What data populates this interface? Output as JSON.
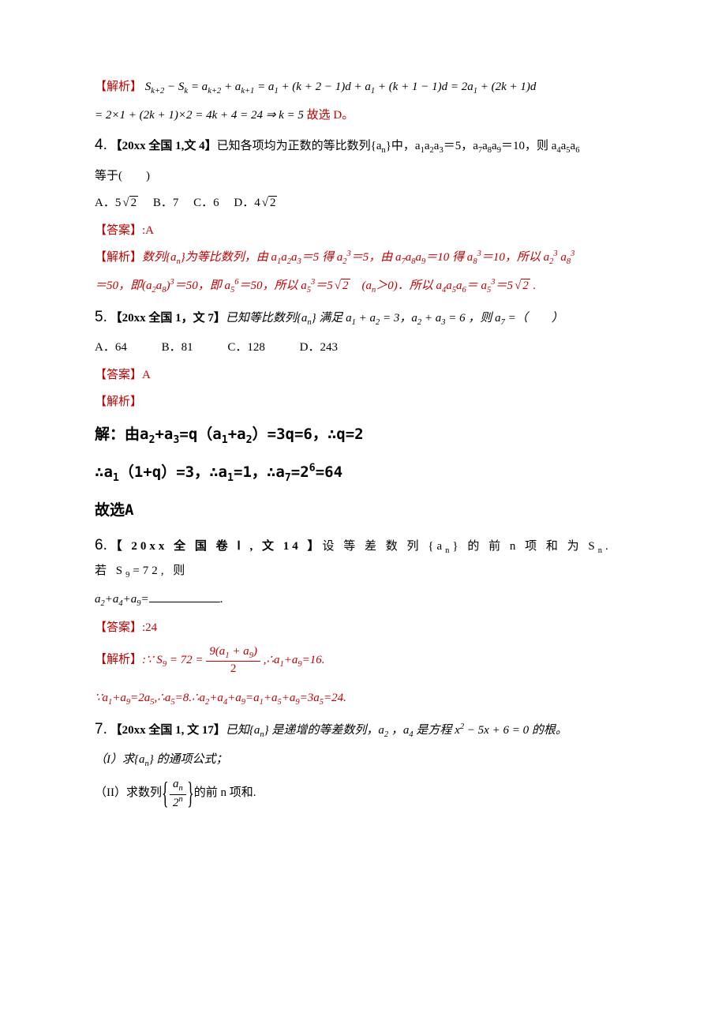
{
  "p3": {
    "analysis_label": "【解析】",
    "line1": "S<sub>k+2</sub> − S<sub>k</sub> = a<sub>k+2</sub> + a<sub>k+1</sub> = a<sub>1</sub> + (k + 2 − 1)d + a<sub>1</sub> + (k + 1 − 1)d = 2a<sub>1</sub> + (2k + 1)d",
    "line2_pre": "= 2×1 + (2k + 1)×2 = 4k + 4 = 24 ⇒ k = 5",
    "line2_suf": "故选 D。"
  },
  "p4": {
    "num": "4.",
    "tag": "【20xx 全国 1,文 4】",
    "stem1": "已知各项均为正数的等比数列{a<sub>n</sub>}中，a<sub>1</sub>a<sub>2</sub>a<sub>3</sub>＝5，a<sub>7</sub>a<sub>8</sub>a<sub>9</sub>＝10，则 a<sub>4</sub>a<sub>5</sub>a<sub>6</sub>",
    "stem2": "等于(　　)",
    "optA_pre": "A．5",
    "optA_sqrt": "2",
    "optB": "B．7",
    "optC": "C．6",
    "optD_pre": "D．4",
    "optD_sqrt": "2",
    "ans_label": "【答案】:",
    "ans_val": "A",
    "anal_label": "【解析】",
    "anal1": "数列{a<sub>n</sub>}为等比数列，由 a<sub>1</sub>a<sub>2</sub>a<sub>3</sub>＝5 得 a<sub>2</sub><sup>3</sup>＝5，由 a<sub>7</sub>a<sub>8</sub>a<sub>9</sub>＝10 得 a<sub>8</sub><sup>3</sup>＝10，所以 a<sub>2</sub><sup>3</sup> a<sub>8</sub><sup>3</sup>",
    "anal2_pre": "＝50，即(a<sub>2</sub>a<sub>8</sub>)<sup>3</sup>＝50，即 a<sub>5</sub><sup>6</sup>＝50，所以 a<sub>5</sub><sup>3</sup>＝5",
    "anal2_sqrt1": "2",
    "anal2_mid": "　(a<sub>n</sub>＞0)．所以 a<sub>4</sub>a<sub>5</sub>a<sub>6</sub>＝ a<sub>5</sub><sup>3</sup>＝5",
    "anal2_sqrt2": "2",
    "anal2_suf": " ."
  },
  "p5": {
    "num": "5.",
    "tag": "【20xx 全国 1，文 7】",
    "stem": "已知等比数列{a<sub>n</sub>} 满足 a<sub>1</sub> + a<sub>2</sub> = 3，a<sub>2</sub> + a<sub>3</sub> = 6 ，则 a<sub>7</sub> =（　　）",
    "optA": "A．64",
    "optB": "B．81",
    "optC": "C．128",
    "optD": "D．243",
    "ans_label": "【答案】",
    "ans_val": "A",
    "anal_label": "【解析】",
    "hand1": "解：由a<sub>2</sub>+a<sub>3</sub>=q（a<sub>1</sub>+a<sub>2</sub>）=3q=6，∴q=2",
    "hand2": "∴a<sub>1</sub>（1+q）=3，∴a<sub>1</sub>=1，∴a<sub>7</sub>=2<sup><b>6</b></sup>=64",
    "hand3": "故选A"
  },
  "p6": {
    "num": "6.",
    "tag": "【 20xx 全 国 卷 Ⅰ , 文 14 】",
    "stem1": "设 等 差 数 列 {a<sub>n</sub>} 的 前 n 项 和 为 S<sub>n</sub>. 若 S<sub>9</sub>=72, 则",
    "stem2_pre": "a<sub>2</sub>+a<sub>4</sub>+a<sub>9</sub>=",
    "stem2_suf": ".",
    "ans_label": "【答案】",
    "ans_val": ":24",
    "anal_label": "【解析】",
    "anal1_pre": ":∵ S<sub>9</sub> = 72 = ",
    "frac_num": "9(a<sub>1</sub> + a<sub>9</sub>)",
    "frac_den": "2",
    "anal1_suf": " ,∴a<sub>1</sub>+a<sub>9</sub>=16.",
    "anal2": "∵a<sub>1</sub>+a<sub>9</sub>=2a<sub>5</sub>,∴a<sub>5</sub>=8.∴a<sub>2</sub>+a<sub>4</sub>+a<sub>9</sub>=a<sub>1</sub>+a<sub>5</sub>+a<sub>9</sub>=3a<sub>5</sub>=24."
  },
  "p7": {
    "num": "7.",
    "tag": "【20xx 全国 1, 文 17】",
    "stem": "已知{a<sub>n</sub>} 是递增的等差数列，a<sub>2</sub> ，a<sub>4</sub> 是方程 x<sup>2</sup> − 5x + 6 = 0 的根。",
    "part1": "（I）求{a<sub>n</sub>} 的通项公式；",
    "part2_pre": "（II）求数列",
    "frac_num": "a<sub>n</sub>",
    "frac_den": "2<sup>n</sup>",
    "part2_suf": "的前 n 项和."
  }
}
